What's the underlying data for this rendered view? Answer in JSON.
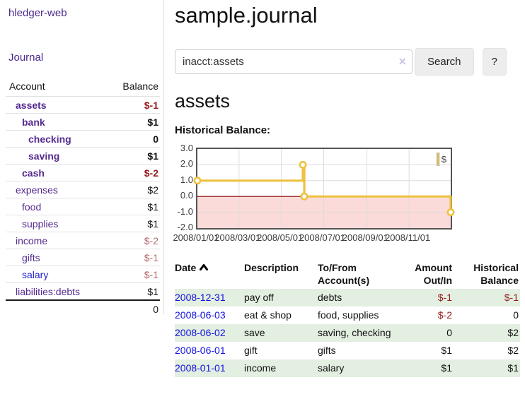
{
  "colors": {
    "link_purple": "#542a8f",
    "link_blue": "#2222cc",
    "negative_strong": "#96191c",
    "negative_muted": "#b56a6e",
    "row_green": "#e3efe1",
    "series_gold": "#EDC240",
    "negative_region_pink": "#fbdada",
    "zero_line_red": "#8b0000"
  },
  "sidebar": {
    "app_title": "hledger-web",
    "journal_link": "Journal",
    "accounts_table": {
      "headers": {
        "account": "Account",
        "balance": "Balance"
      },
      "rows": [
        {
          "name": "assets",
          "balance": "$-1",
          "depth": 1,
          "bold": true,
          "balance_color": "neg-strong"
        },
        {
          "name": "bank",
          "balance": "$1",
          "depth": 2,
          "bold": true,
          "balance_color": ""
        },
        {
          "name": "checking",
          "balance": "0",
          "depth": 3,
          "bold": true,
          "balance_color": ""
        },
        {
          "name": "saving",
          "balance": "$1",
          "depth": 3,
          "bold": true,
          "balance_color": ""
        },
        {
          "name": "cash",
          "balance": "$-2",
          "depth": 2,
          "bold": true,
          "balance_color": "neg-strong"
        },
        {
          "name": "expenses",
          "balance": "$2",
          "depth": 1,
          "bold": false,
          "balance_color": ""
        },
        {
          "name": "food",
          "balance": "$1",
          "depth": 2,
          "bold": false,
          "balance_color": ""
        },
        {
          "name": "supplies",
          "balance": "$1",
          "depth": 2,
          "bold": false,
          "balance_color": ""
        },
        {
          "name": "income",
          "balance": "$-2",
          "depth": 1,
          "bold": false,
          "balance_color": "neg-muted"
        },
        {
          "name": "gifts",
          "balance": "$-1",
          "depth": 2,
          "bold": false,
          "balance_color": "neg-muted"
        },
        {
          "name": "salary",
          "balance": "$-1",
          "depth": 2,
          "bold": false,
          "balance_color": "neg-muted",
          "link_style": "unvisited"
        },
        {
          "name": "liabilities:debts",
          "balance": "$1",
          "depth": 1,
          "bold": false,
          "balance_color": ""
        }
      ],
      "total": "0"
    }
  },
  "header": {
    "title": "sample.journal"
  },
  "search": {
    "query": "inacct:assets",
    "clear_icon": "×",
    "search_button_label": "Search",
    "help_button_label": "?"
  },
  "account_page": {
    "heading": "assets",
    "chart_title": "Historical Balance:"
  },
  "chart_data": {
    "type": "line",
    "step": true,
    "title": "Historical Balance:",
    "legend": [
      "$"
    ],
    "legend_position": "top-right",
    "grid": true,
    "series": [
      {
        "name": "$",
        "points": [
          {
            "x": "2008-01-01",
            "y": 1
          },
          {
            "x": "2008-06-01",
            "y": 2
          },
          {
            "x": "2008-06-03",
            "y": 0
          },
          {
            "x": "2008-12-31",
            "y": -1
          }
        ]
      }
    ],
    "x_range": [
      "2008-01-01",
      "2008-12-31"
    ],
    "ylim": [
      -2,
      3
    ],
    "y_ticks": [
      "3.0",
      "2.0",
      "1.0",
      "0.0",
      "-1.0",
      "-2.0"
    ],
    "x_ticks": [
      "2008/01/01",
      "2008/03/01",
      "2008/05/01",
      "2008/07/01",
      "2008/09/01",
      "2008/11/01"
    ],
    "negative_region_shaded": true
  },
  "register": {
    "headers": {
      "date": "Date",
      "sort_icon": "chevron-up",
      "description": "Description",
      "accounts_line1": "To/From",
      "accounts_line2": "Account(s)",
      "amount_line1": "Amount",
      "amount_line2": "Out/In",
      "balance_line1": "Historical",
      "balance_line2": "Balance"
    },
    "rows": [
      {
        "date": "2008-12-31",
        "description": "pay off",
        "accounts": "debts",
        "amount": "$-1",
        "amount_color": "neg-strong",
        "balance": "$-1",
        "balance_color": "neg-strong",
        "alt": true
      },
      {
        "date": "2008-06-03",
        "description": "eat & shop",
        "accounts": "food, supplies",
        "amount": "$-2",
        "amount_color": "neg-strong",
        "balance": "0",
        "balance_color": "",
        "alt": false
      },
      {
        "date": "2008-06-02",
        "description": "save",
        "accounts": "saving, checking",
        "amount": "0",
        "amount_color": "",
        "balance": "$2",
        "balance_color": "",
        "alt": true
      },
      {
        "date": "2008-06-01",
        "description": "gift",
        "accounts": "gifts",
        "amount": "$1",
        "amount_color": "",
        "balance": "$2",
        "balance_color": "",
        "alt": false
      },
      {
        "date": "2008-01-01",
        "description": "income",
        "accounts": "salary",
        "amount": "$1",
        "amount_color": "",
        "balance": "$1",
        "balance_color": "",
        "alt": true
      }
    ]
  }
}
